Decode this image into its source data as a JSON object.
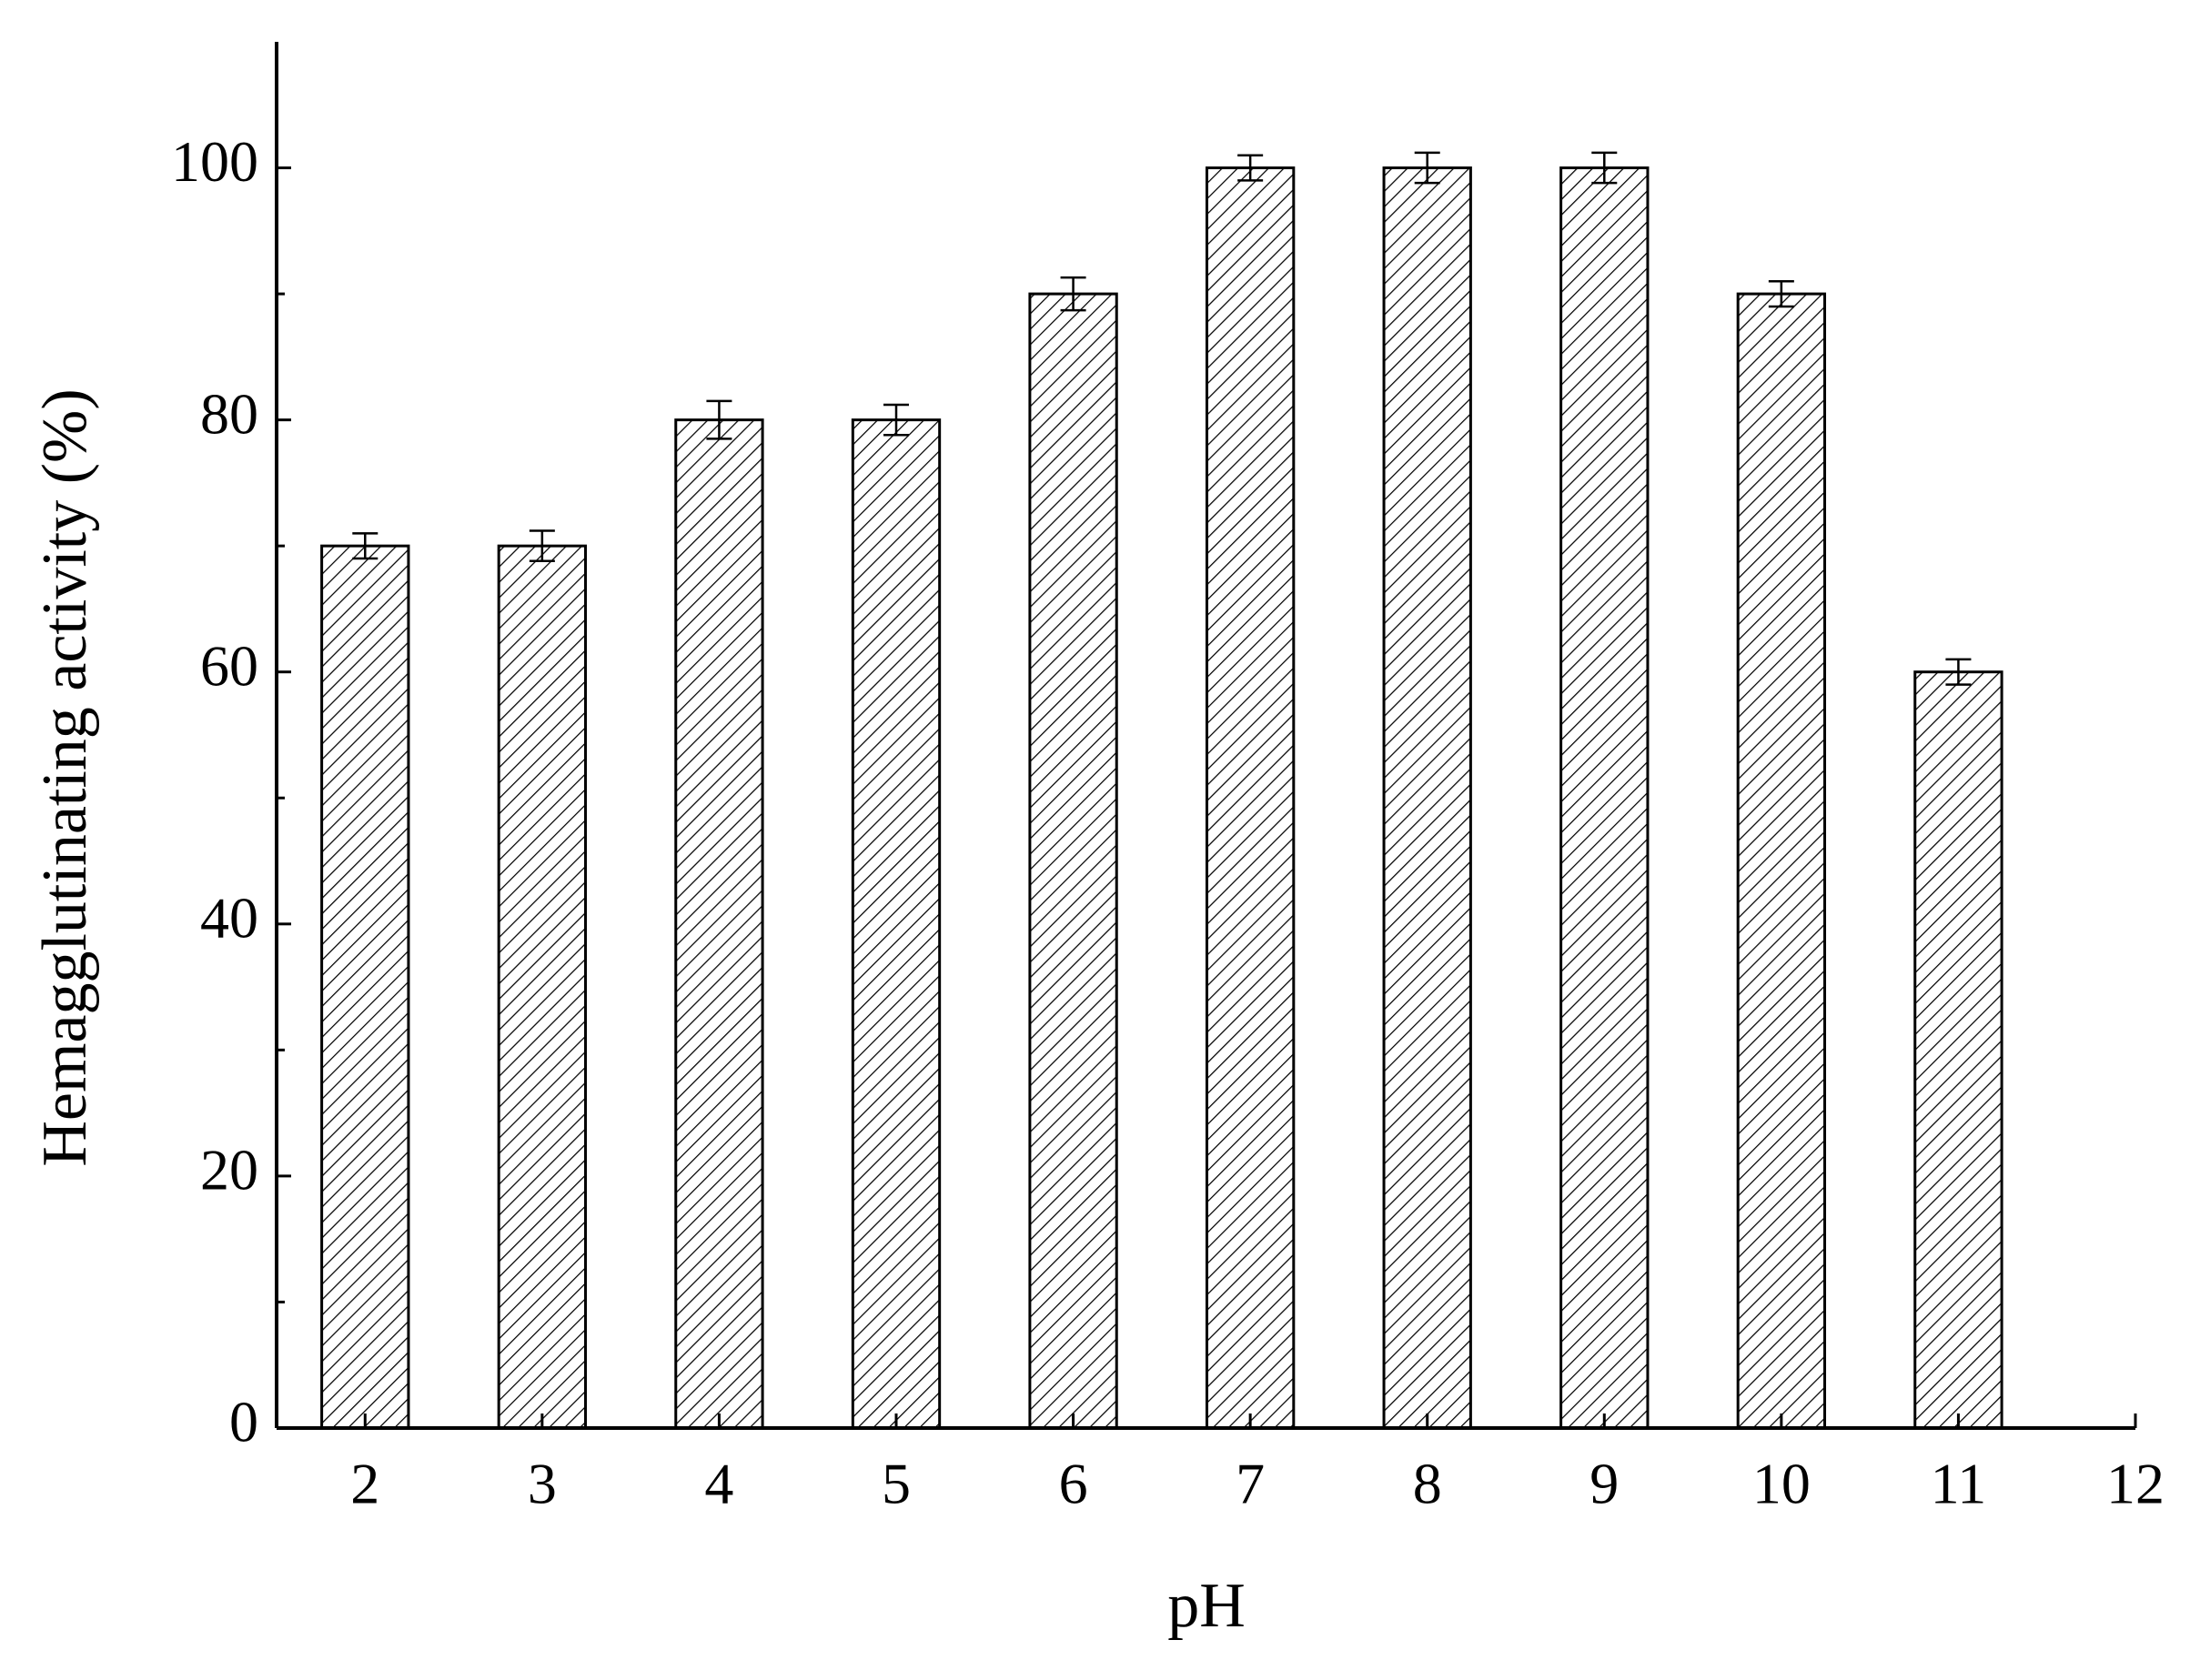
{
  "chart_data": {
    "type": "bar",
    "x_label": "pH",
    "y_label": "Hemagglutinating activity (%)",
    "x": [
      2,
      3,
      4,
      5,
      6,
      7,
      8,
      9,
      10,
      11
    ],
    "values": [
      70,
      70,
      80,
      80,
      90,
      100,
      100,
      100,
      90,
      60
    ],
    "errors": [
      1,
      1.2,
      1.5,
      1.2,
      1.3,
      1,
      1.2,
      1.2,
      1,
      1
    ],
    "color": "#000000",
    "xlim": [
      1.5,
      12
    ],
    "xticks": [
      2,
      3,
      4,
      5,
      6,
      7,
      8,
      9,
      10,
      11,
      12
    ],
    "ylim": [
      0,
      110
    ],
    "yticks": [
      0,
      20,
      40,
      60,
      80,
      100
    ],
    "yminorticks": [
      10,
      30,
      50,
      70,
      90
    ]
  }
}
